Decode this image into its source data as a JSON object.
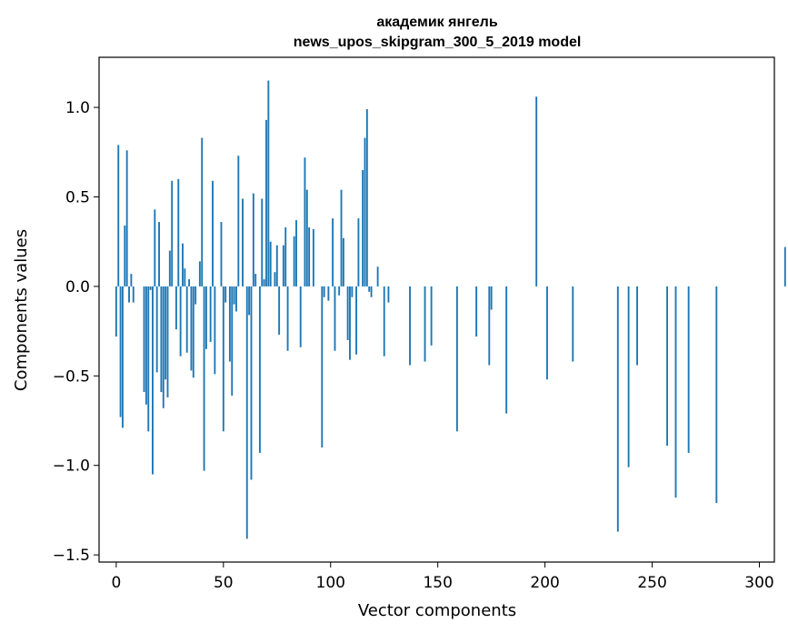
{
  "chart_data": {
    "type": "bar",
    "title": "академик янгель",
    "subtitle": "news_upos_skipgram_300_5_2019 model",
    "xlabel": "Vector components",
    "ylabel": "Components values",
    "xlim": [
      -8,
      307
    ],
    "ylim": [
      -1.54,
      1.28
    ],
    "x_ticks": [
      0,
      50,
      100,
      150,
      200,
      250,
      300
    ],
    "x_tick_labels": [
      "0",
      "50",
      "100",
      "150",
      "200",
      "250",
      "300"
    ],
    "y_ticks": [
      -1.5,
      -1.0,
      -0.5,
      0.0,
      0.5,
      1.0
    ],
    "y_tick_labels": [
      "−1.5",
      "−1.0",
      "−0.5",
      "0.0",
      "0.5",
      "1.0"
    ],
    "grid": false,
    "bar_color": "#1f77b4",
    "series": [
      {
        "values": [
          -0.28,
          0.79,
          -0.73,
          -0.79,
          0.34,
          0.76,
          -0.09,
          0.07,
          -0.09,
          0.0,
          0.0,
          0.0,
          0.0,
          -0.59,
          -0.66,
          -0.81,
          -0.02,
          -1.05,
          0.43,
          -0.48,
          0.36,
          -0.59,
          -0.68,
          -0.52,
          -0.62,
          0.2,
          0.59,
          0.0,
          -0.24,
          0.6,
          -0.39,
          0.24,
          0.1,
          -0.37,
          0.04,
          -0.47,
          -0.51,
          -0.1,
          0.0,
          0.14,
          0.83,
          -1.03,
          -0.35,
          0.0,
          -0.31,
          0.59,
          -0.49,
          0.0,
          0.0,
          0.36,
          -0.81,
          -0.09,
          0.0,
          -0.42,
          -0.61,
          -0.1,
          -0.14,
          0.73,
          0.0,
          0.49,
          0.0,
          -1.41,
          -0.16,
          -1.08,
          0.52,
          0.07,
          0.0,
          -0.93,
          0.49,
          0.04,
          0.93,
          1.15,
          0.25,
          0.0,
          0.08,
          0.23,
          -0.27,
          0.0,
          0.23,
          0.33,
          -0.36,
          0.0,
          0.0,
          0.28,
          0.37,
          0.0,
          -0.34,
          0.0,
          0.72,
          0.54,
          0.33,
          0.0,
          0.32,
          0.0,
          0.0,
          0.0,
          -0.9,
          -0.06,
          0.0,
          -0.08,
          0.0,
          0.38,
          -0.36,
          0.0,
          -0.05,
          0.54,
          0.27,
          0.0,
          -0.3,
          -0.41,
          -0.06,
          0.0,
          -0.38,
          0.38,
          0.0,
          0.65,
          0.83,
          0.99,
          -0.03,
          -0.06,
          0.0,
          0.0,
          0.11,
          0.0,
          0.0,
          -0.39,
          0.0,
          -0.09,
          0.0,
          0.0,
          0.0,
          0.0,
          0.0,
          0.0,
          0.0,
          0.0,
          0.0,
          -0.44,
          0.0,
          0.0,
          0.0,
          0.0,
          0.0,
          0.0,
          -0.42,
          0.0,
          0.0,
          -0.33,
          0.0,
          0.0,
          0.0,
          0.0,
          0.0,
          0.0,
          0.0,
          0.0,
          0.0,
          0.0,
          0.0,
          -0.81,
          0.0,
          0.0,
          0.0,
          0.0,
          0.0,
          0.0,
          0.0,
          0.0,
          -0.28,
          0.0,
          0.0,
          0.0,
          0.0,
          0.0,
          -0.44,
          -0.13,
          0.0,
          0.0,
          0.0,
          0.0,
          0.0,
          0.0,
          -0.71,
          0.0,
          0.0,
          0.0,
          0.0,
          0.0,
          0.0,
          0.0,
          0.0,
          0.0,
          0.0,
          0.0,
          0.0,
          0.0,
          1.06,
          0.0,
          0.0,
          0.0,
          0.0,
          -0.52,
          0.0,
          0.0,
          0.0,
          0.0,
          0.0,
          0.0,
          0.0,
          0.0,
          0.0,
          0.0,
          0.0,
          -0.42,
          0.0,
          0.0,
          0.0,
          0.0,
          0.0,
          0.0,
          0.0,
          0.0,
          0.0,
          0.0,
          0.0,
          0.0,
          0.0,
          0.0,
          0.0,
          0.0,
          0.0,
          0.0,
          0.0,
          0.0,
          -1.37,
          0.0,
          0.0,
          0.0,
          0.0,
          -1.01,
          0.0,
          0.0,
          0.0,
          -0.44,
          0.0,
          0.0,
          0.0,
          0.0,
          0.0,
          0.0,
          0.0,
          0.0,
          0.0,
          0.0,
          0.0,
          0.0,
          0.0,
          -0.89,
          0.0,
          0.0,
          0.0,
          -1.18,
          0.0,
          0.0,
          0.0,
          0.0,
          0.0,
          -0.93,
          0.0,
          0.0,
          0.0,
          0.0,
          0.0,
          0.0,
          0.0,
          0.0,
          0.0,
          0.0,
          0.0,
          0.0,
          -1.21,
          0.0,
          0.0,
          0.0,
          0.0,
          0.0,
          0.0,
          0.0,
          0.0,
          0.0,
          0.0,
          0.0,
          0.0,
          0.0,
          0.0,
          0.0,
          0.0,
          0.0,
          0.0,
          0.0,
          0.0,
          0.0,
          0.0,
          0.0,
          0.0,
          0.0,
          0.0,
          0.0,
          0.0,
          0.0,
          0.0,
          0.0,
          0.22
        ]
      }
    ]
  }
}
